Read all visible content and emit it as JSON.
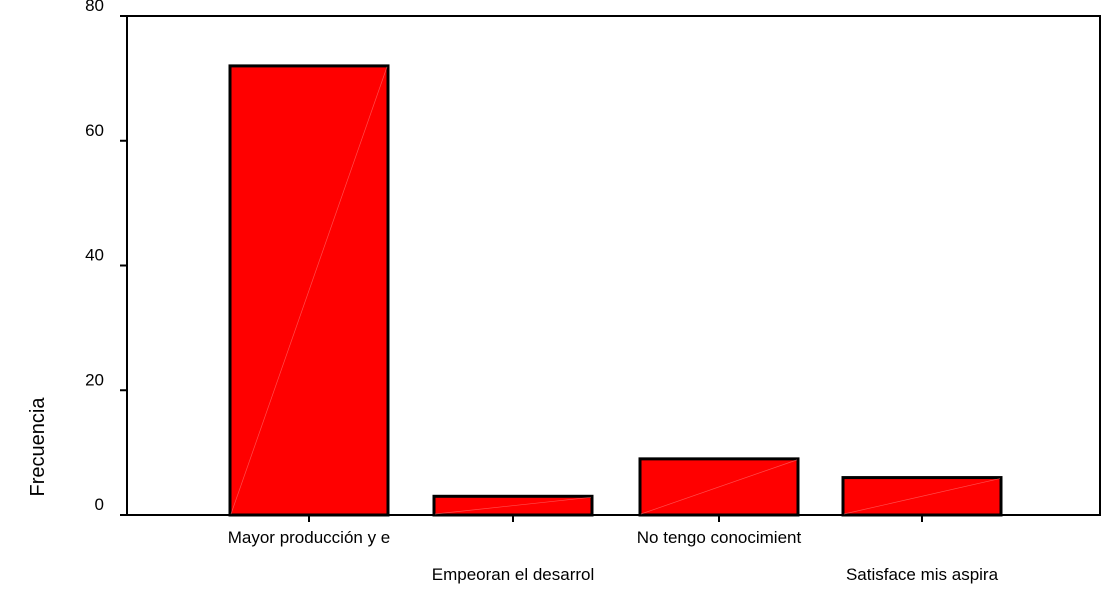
{
  "chart_data": {
    "type": "bar",
    "categories": [
      "Mayor producción y e",
      "Empeoran el desarrol",
      "No tengo conocimient",
      "Satisface mis aspira"
    ],
    "values": [
      72,
      3,
      9,
      6
    ],
    "title": "",
    "xlabel": "",
    "ylabel": "Frecuencia",
    "ylim": [
      0,
      80
    ],
    "yticks": [
      "0",
      "20",
      "40",
      "60",
      "80"
    ],
    "grid": false,
    "legend": "none",
    "bar_color": "#ff0000",
    "bar_border_color": "#000000",
    "axis_color": "#000000"
  }
}
